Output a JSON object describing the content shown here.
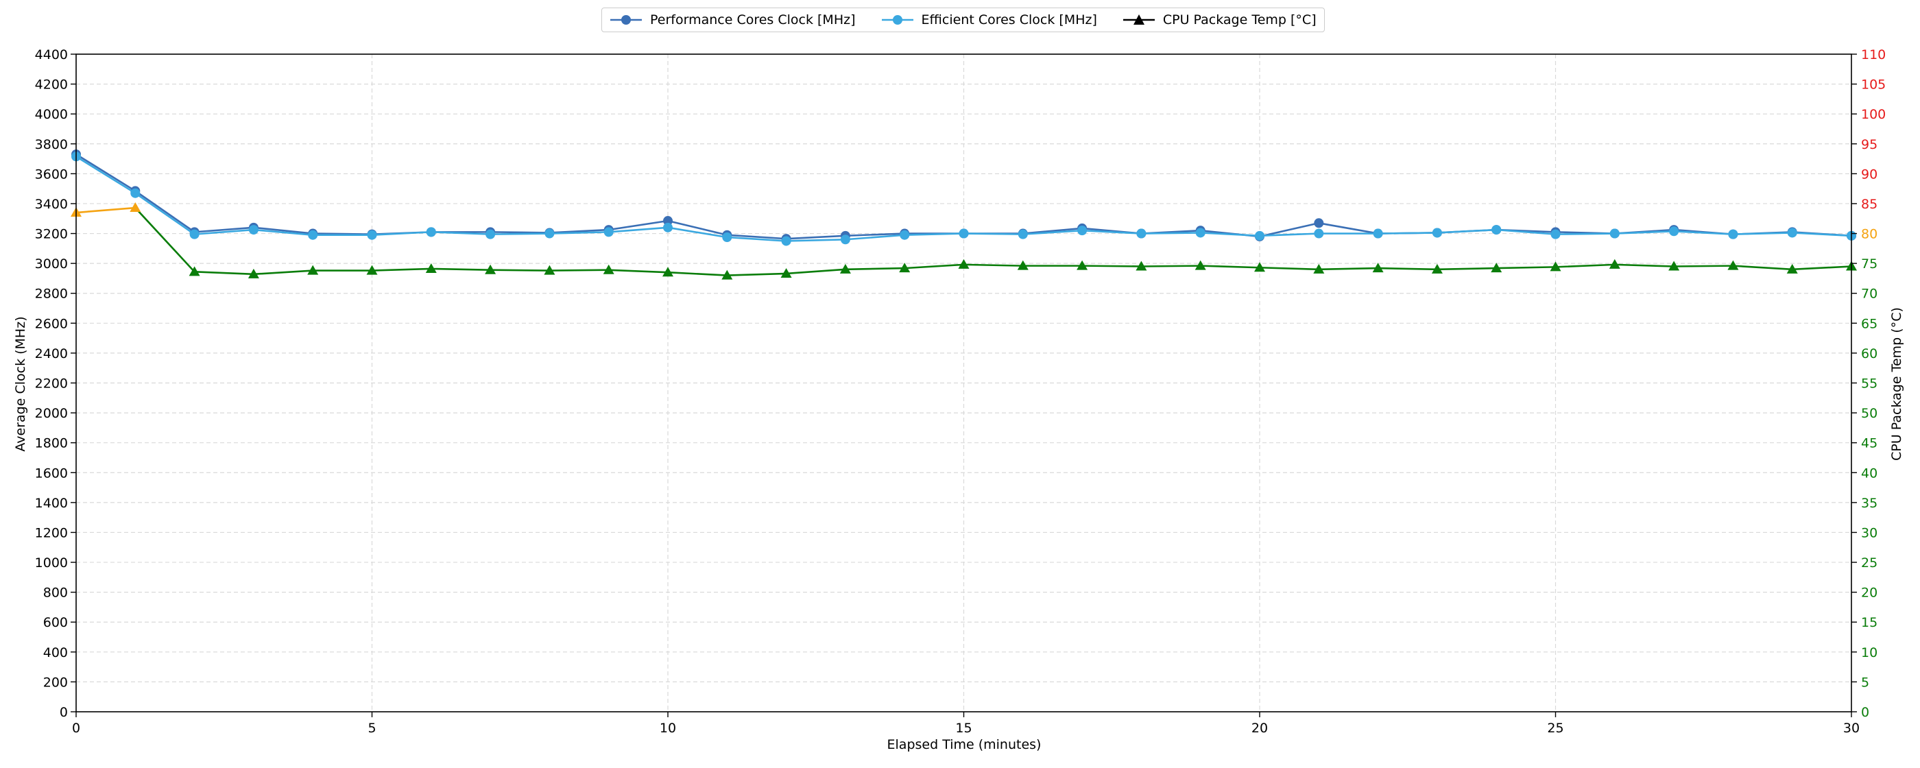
{
  "chart_data": {
    "type": "line",
    "xlabel": "Elapsed Time (minutes)",
    "ylabel_left": "Average Clock (MHz)",
    "ylabel_right": "CPU Package Temp (°C)",
    "xlim": [
      0,
      30
    ],
    "ylim_left": [
      0,
      4400
    ],
    "ylim_right": [
      0,
      110
    ],
    "x_ticks": [
      0,
      5,
      10,
      15,
      20,
      25,
      30
    ],
    "y_ticks_left": [
      0,
      200,
      400,
      600,
      800,
      1000,
      1200,
      1400,
      1600,
      1800,
      2000,
      2200,
      2400,
      2600,
      2800,
      3000,
      3200,
      3400,
      3600,
      3800,
      4000,
      4200,
      4400
    ],
    "y_ticks_right": [
      0,
      5,
      10,
      15,
      20,
      25,
      30,
      35,
      40,
      45,
      50,
      55,
      60,
      65,
      70,
      75,
      80,
      85,
      90,
      95,
      100,
      105,
      110
    ],
    "grid": true,
    "legend_position": "top-center",
    "x": [
      0,
      1,
      2,
      3,
      4,
      5,
      6,
      7,
      8,
      9,
      10,
      11,
      12,
      13,
      14,
      15,
      16,
      17,
      18,
      19,
      20,
      21,
      22,
      23,
      24,
      25,
      26,
      27,
      28,
      29,
      30
    ],
    "series": [
      {
        "name": "Performance Cores Clock [MHz]",
        "axis": "left",
        "color": "#3a6fb5",
        "marker": "circle",
        "values": [
          3730,
          3485,
          3210,
          3240,
          3200,
          3195,
          3210,
          3210,
          3205,
          3225,
          3285,
          3190,
          3165,
          3185,
          3200,
          3200,
          3200,
          3235,
          3200,
          3220,
          3180,
          3270,
          3200,
          3205,
          3225,
          3210,
          3200,
          3225,
          3195,
          3210,
          3185
        ]
      },
      {
        "name": "Efficient Cores Clock [MHz]",
        "axis": "left",
        "color": "#3aa8e0",
        "marker": "circle",
        "values": [
          3715,
          3470,
          3195,
          3225,
          3190,
          3190,
          3210,
          3195,
          3200,
          3210,
          3240,
          3175,
          3150,
          3160,
          3190,
          3200,
          3195,
          3220,
          3200,
          3205,
          3185,
          3200,
          3200,
          3205,
          3225,
          3195,
          3200,
          3215,
          3195,
          3205,
          3185
        ]
      },
      {
        "name": "CPU Package Temp [°C]",
        "axis": "right",
        "color": "#0a7d0a",
        "marker": "triangle",
        "values": [
          83.5,
          84.3,
          73.6,
          73.2,
          73.8,
          73.8,
          74.1,
          73.9,
          73.8,
          73.9,
          73.5,
          73.0,
          73.3,
          74.0,
          74.2,
          74.8,
          74.6,
          74.6,
          74.5,
          74.6,
          74.3,
          74.0,
          74.2,
          74.0,
          74.2,
          74.4,
          74.8,
          74.5,
          74.6,
          74.0,
          74.5
        ]
      }
    ],
    "temp_threshold": 80,
    "temp_colors": {
      "normal": "#0a7d0a",
      "warning": "#f5a312",
      "critical": "#e61a1a"
    },
    "legend_marker_color_temp": "#000000",
    "axis_color": "#000000",
    "grid_color": "#d9d9d9"
  }
}
